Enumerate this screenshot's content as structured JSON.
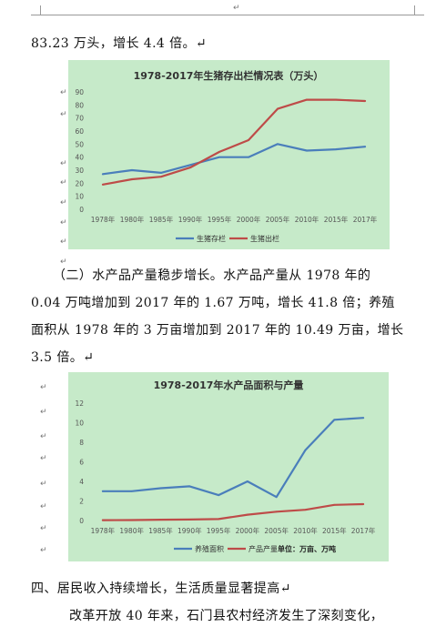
{
  "document": {
    "line_before_chart1": "83.23 万头，增长 4.4 倍。↵",
    "para2_lines": [
      "（二）水产品产量稳步增长。水产品产量从 1978 年的",
      "0.04 万吨增加到 2017 年的 1.67 万吨，增长 41.8 倍；养殖",
      "面积从 1978 年的 3 万亩增加到 2017 年的 10.49 万亩，增长",
      "3.5 倍。↵"
    ],
    "heading4": "四、居民收入持续增长，生活质量显著提高↵",
    "last_line": "改革开放 40 年来，石门县农村经济发生了深刻变化，",
    "margin_mark": "↵",
    "top_mark": "↵"
  },
  "chart_data": [
    {
      "type": "line",
      "title": "1978-2017年生猪存出栏情况表（万头）",
      "categories": [
        "1978年",
        "1980年",
        "1985年",
        "1990年",
        "1995年",
        "2000年",
        "2005年",
        "2010年",
        "2015年",
        "2017年"
      ],
      "series": [
        {
          "name": "生猪存栏",
          "color": "#4a7ebb",
          "values": [
            27,
            30,
            28,
            34,
            40,
            40,
            50,
            45,
            46,
            48
          ]
        },
        {
          "name": "生猪出栏",
          "color": "#be4b48",
          "values": [
            19,
            23,
            25,
            32,
            44,
            53,
            77,
            84,
            84,
            83
          ]
        }
      ],
      "yticks": [
        0,
        10,
        20,
        30,
        40,
        50,
        60,
        70,
        80,
        90
      ],
      "ylim": [
        0,
        90
      ],
      "grid": false,
      "legend": "bottom"
    },
    {
      "type": "line",
      "title": "1978-2017年水产品面积与产量",
      "categories": [
        "1978年",
        "1980年",
        "1985年",
        "1990年",
        "1995年",
        "2000年",
        "2005年",
        "2010年",
        "2015年",
        "2017年"
      ],
      "series": [
        {
          "name": "养殖面积",
          "color": "#4a7ebb",
          "values": [
            3,
            3,
            3.3,
            3.5,
            2.6,
            4,
            2.4,
            7.2,
            10.3,
            10.49
          ]
        },
        {
          "name": "产品产量",
          "color": "#be4b48",
          "values": [
            0.04,
            0.05,
            0.08,
            0.1,
            0.15,
            0.6,
            0.9,
            1.1,
            1.6,
            1.67
          ]
        }
      ],
      "unit_note": "单位：万亩、万吨",
      "yticks": [
        0,
        2,
        4,
        6,
        8,
        10,
        12
      ],
      "ylim": [
        0,
        12
      ],
      "grid": false,
      "legend": "bottom"
    }
  ]
}
